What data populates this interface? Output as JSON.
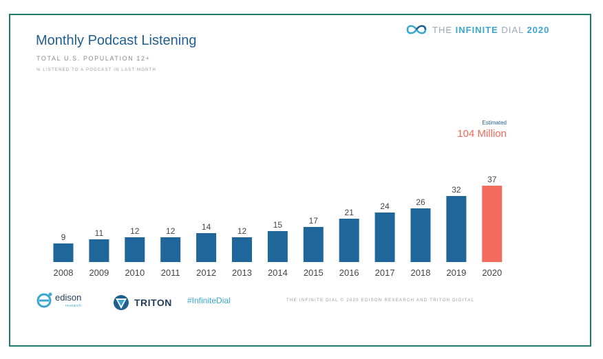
{
  "header": {
    "title": "Monthly Podcast Listening",
    "subtitle": "TOTAL U.S. POPULATION 12+",
    "note": "% LISTENED TO A PODCAST IN LAST MONTH"
  },
  "brand": {
    "prefix": "THE ",
    "highlight": "INFINITE",
    "middle": " DIAL ",
    "year": "2020"
  },
  "estimate": {
    "label": "Estimated",
    "value": "104 Million"
  },
  "colors": {
    "bar": "#1f669a",
    "highlight_bar": "#f36b5d",
    "text": "#444444"
  },
  "chart_data": {
    "type": "bar",
    "categories": [
      "2008",
      "2009",
      "2010",
      "2011",
      "2012",
      "2013",
      "2014",
      "2015",
      "2016",
      "2017",
      "2018",
      "2019",
      "2020"
    ],
    "values": [
      9,
      11,
      12,
      12,
      14,
      12,
      15,
      17,
      21,
      24,
      26,
      32,
      37
    ],
    "highlight_index": 12,
    "ylim": [
      0,
      40
    ],
    "grid": false
  },
  "footer": {
    "edison": "edison",
    "edison_sub": "research",
    "triton": "TRITON",
    "hashtag": "#InfiniteDial",
    "copyright": "THE INFINITE DIAL  © 2020 EDISON RESEARCH AND TRITON DIGITAL"
  }
}
